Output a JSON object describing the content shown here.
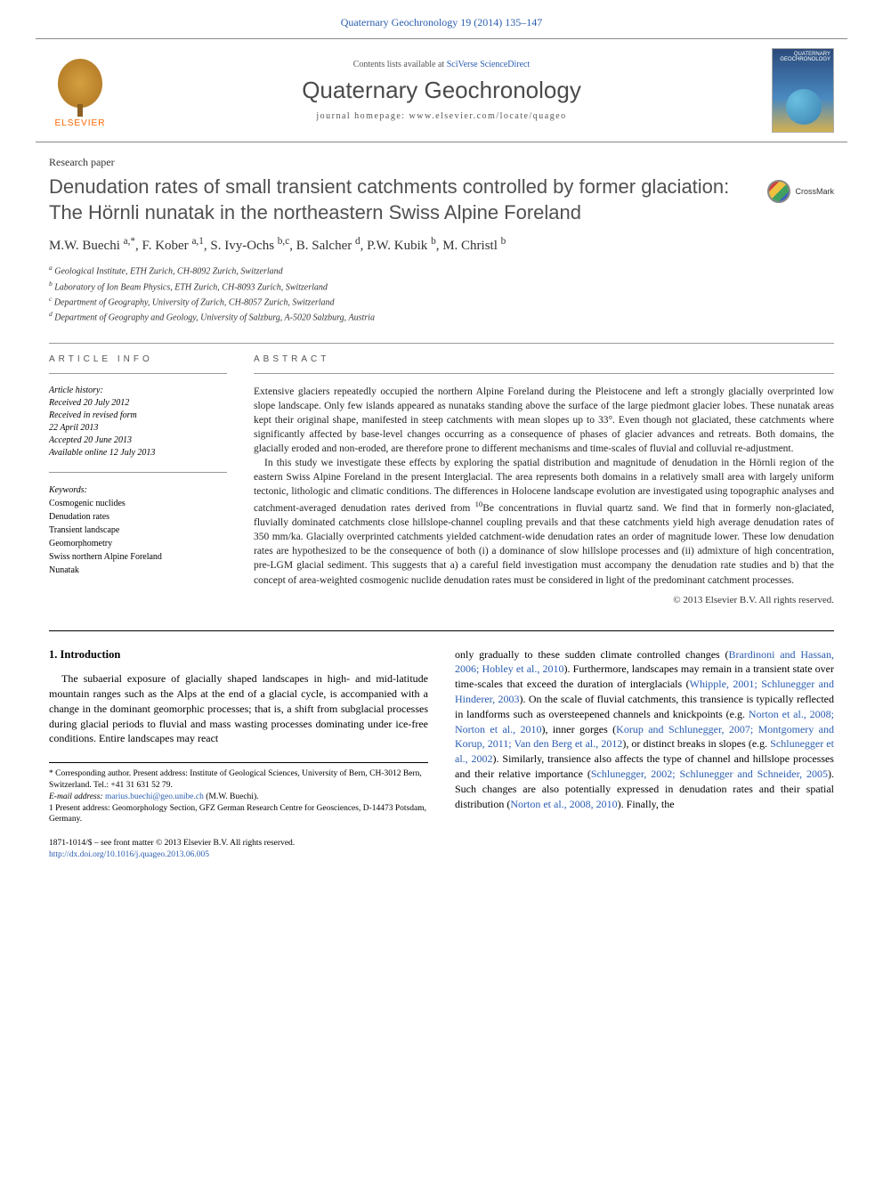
{
  "header": {
    "citation": "Quaternary Geochronology 19 (2014) 135–147"
  },
  "banner": {
    "contents_prefix": "Contents lists available at ",
    "contents_link": "SciVerse ScienceDirect",
    "journal_name": "Quaternary Geochronology",
    "homepage_label": "journal homepage: ",
    "homepage_url": "www.elsevier.com/locate/quageo",
    "publisher": "ELSEVIER",
    "cover_text": "QUATERNARY GEOCHRONOLOGY"
  },
  "paper_type": "Research paper",
  "title": "Denudation rates of small transient catchments controlled by former glaciation: The Hörnli nunatak in the northeastern Swiss Alpine Foreland",
  "crossmark": "CrossMark",
  "authors_html": "M.W. Buechi <sup>a,*</sup>, F. Kober <sup>a,1</sup>, S. Ivy-Ochs <sup>b,c</sup>, B. Salcher <sup>d</sup>, P.W. Kubik <sup>b</sup>, M. Christl <sup>b</sup>",
  "affiliations": [
    "a Geological Institute, ETH Zurich, CH-8092 Zurich, Switzerland",
    "b Laboratory of Ion Beam Physics, ETH Zurich, CH-8093 Zurich, Switzerland",
    "c Department of Geography, University of Zurich, CH-8057 Zurich, Switzerland",
    "d Department of Geography and Geology, University of Salzburg, A-5020 Salzburg, Austria"
  ],
  "article_info": {
    "heading": "ARTICLE INFO",
    "history_title": "Article history:",
    "history": [
      "Received 20 July 2012",
      "Received in revised form",
      "22 April 2013",
      "Accepted 20 June 2013",
      "Available online 12 July 2013"
    ],
    "keywords_title": "Keywords:",
    "keywords": [
      "Cosmogenic nuclides",
      "Denudation rates",
      "Transient landscape",
      "Geomorphometry",
      "Swiss northern Alpine Foreland",
      "Nunatak"
    ]
  },
  "abstract": {
    "heading": "ABSTRACT",
    "paragraphs": [
      "Extensive glaciers repeatedly occupied the northern Alpine Foreland during the Pleistocene and left a strongly glacially overprinted low slope landscape. Only few islands appeared as nunataks standing above the surface of the large piedmont glacier lobes. These nunatak areas kept their original shape, manifested in steep catchments with mean slopes up to 33°. Even though not glaciated, these catchments where significantly affected by base-level changes occurring as a consequence of phases of glacier advances and retreats. Both domains, the glacially eroded and non-eroded, are therefore prone to different mechanisms and time-scales of fluvial and colluvial re-adjustment.",
      "In this study we investigate these effects by exploring the spatial distribution and magnitude of denudation in the Hörnli region of the eastern Swiss Alpine Foreland in the present Interglacial. The area represents both domains in a relatively small area with largely uniform tectonic, lithologic and climatic conditions. The differences in Holocene landscape evolution are investigated using topographic analyses and catchment-averaged denudation rates derived from 10Be concentrations in fluvial quartz sand. We find that in formerly non-glaciated, fluvially dominated catchments close hillslope-channel coupling prevails and that these catchments yield high average denudation rates of 350 mm/ka. Glacially overprinted catchments yielded catchment-wide denudation rates an order of magnitude lower. These low denudation rates are hypothesized to be the consequence of both (i) a dominance of slow hillslope processes and (ii) admixture of high concentration, pre-LGM glacial sediment. This suggests that a) a careful field investigation must accompany the denudation rate studies and b) that the concept of area-weighted cosmogenic nuclide denudation rates must be considered in light of the predominant catchment processes."
    ],
    "copyright": "© 2013 Elsevier B.V. All rights reserved."
  },
  "body": {
    "section_number": "1.",
    "section_title": "Introduction",
    "col1": "The subaerial exposure of glacially shaped landscapes in high- and mid-latitude mountain ranges such as the Alps at the end of a glacial cycle, is accompanied with a change in the dominant geomorphic processes; that is, a shift from subglacial processes during glacial periods to fluvial and mass wasting processes dominating under ice-free conditions. Entire landscapes may react",
    "col2_pre": "only gradually to these sudden climate controlled changes (",
    "col2_ref1": "Brardinoni and Hassan, 2006; Hobley et al., 2010",
    "col2_mid1": "). Furthermore, landscapes may remain in a transient state over time-scales that exceed the duration of interglacials (",
    "col2_ref2": "Whipple, 2001; Schlunegger and Hinderer, 2003",
    "col2_mid2": "). On the scale of fluvial catchments, this transience is typically reflected in landforms such as oversteepened channels and knickpoints (e.g. ",
    "col2_ref3": "Norton et al., 2008; Norton et al., 2010",
    "col2_mid3": "), inner gorges (",
    "col2_ref4": "Korup and Schlunegger, 2007; Montgomery and Korup, 2011; Van den Berg et al., 2012",
    "col2_mid4": "), or distinct breaks in slopes (e.g. ",
    "col2_ref5": "Schlunegger et al., 2002",
    "col2_mid5": "). Similarly, transience also affects the type of channel and hillslope processes and their relative importance (",
    "col2_ref6": "Schlunegger, 2002; Schlunegger and Schneider, 2005",
    "col2_mid6": "). Such changes are also potentially expressed in denudation rates and their spatial distribution (",
    "col2_ref7": "Norton et al., 2008, 2010",
    "col2_end": "). Finally, the"
  },
  "footnotes": {
    "corresponding": "* Corresponding author. Present address: Institute of Geological Sciences, University of Bern, CH-3012 Bern, Switzerland. Tel.: +41 31 631 52 79.",
    "email_label": "E-mail address: ",
    "email": "marius.buechi@geo.unibe.ch",
    "email_suffix": " (M.W. Buechi).",
    "note1": "1 Present address: Geomorphology Section, GFZ German Research Centre for Geosciences, D-14473 Potsdam, Germany."
  },
  "footer": {
    "issn_line": "1871-1014/$ – see front matter © 2013 Elsevier B.V. All rights reserved.",
    "doi": "http://dx.doi.org/10.1016/j.quageo.2013.06.005"
  },
  "colors": {
    "link": "#2a5db0",
    "publisher_orange": "#ff6600",
    "title_gray": "#505050",
    "text": "#000000"
  }
}
